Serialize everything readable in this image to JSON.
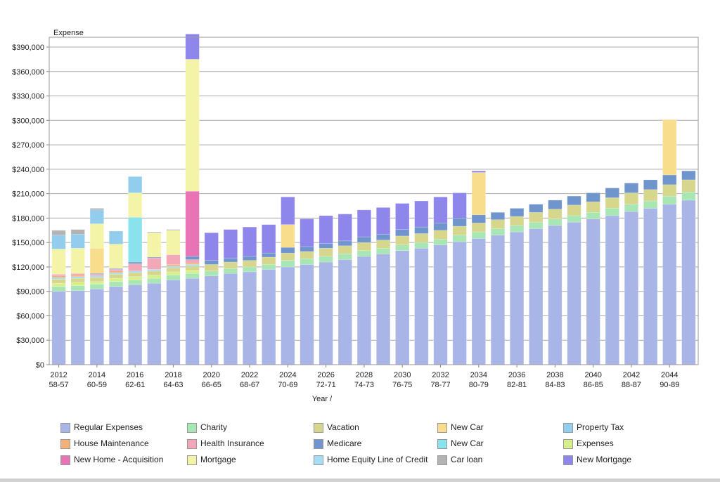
{
  "chart_data": {
    "type": "bar",
    "stacked": true,
    "title": "",
    "ylabel": "Expense",
    "xlabel": "Year /",
    "ylim": [
      0,
      400000
    ],
    "yticks": [
      0,
      30000,
      60000,
      90000,
      120000,
      150000,
      180000,
      210000,
      240000,
      270000,
      300000,
      330000,
      360000,
      390000
    ],
    "ytick_labels": [
      "$0",
      "$30,000",
      "$60,000",
      "$90,000",
      "$120,000",
      "$150,000",
      "$180,000",
      "$210,000",
      "$240,000",
      "$270,000",
      "$300,000",
      "$330,000",
      "$360,000",
      "$390,000"
    ],
    "grid": true,
    "legend_position": "bottom",
    "categories": [
      "2012",
      "2013",
      "2014",
      "2015",
      "2016",
      "2017",
      "2018",
      "2019",
      "2020",
      "2021",
      "2022",
      "2023",
      "2024",
      "2025",
      "2026",
      "2027",
      "2028",
      "2029",
      "2030",
      "2031",
      "2032",
      "2033",
      "2034",
      "2035",
      "2036",
      "2037",
      "2038",
      "2039",
      "2040",
      "2041",
      "2042",
      "2043",
      "2044",
      "2045"
    ],
    "x_tick_labels": [
      {
        "year": "2012",
        "ages": "58-57"
      },
      {
        "year": "2014",
        "ages": "60-59"
      },
      {
        "year": "2016",
        "ages": "62-61"
      },
      {
        "year": "2018",
        "ages": "64-63"
      },
      {
        "year": "2020",
        "ages": "66-65"
      },
      {
        "year": "2022",
        "ages": "68-67"
      },
      {
        "year": "2024",
        "ages": "70-69"
      },
      {
        "year": "2026",
        "ages": "72-71"
      },
      {
        "year": "2028",
        "ages": "74-73"
      },
      {
        "year": "2030",
        "ages": "76-75"
      },
      {
        "year": "2032",
        "ages": "78-77"
      },
      {
        "year": "2034",
        "ages": "80-79"
      },
      {
        "year": "2036",
        "ages": "82-81"
      },
      {
        "year": "2038",
        "ages": "84-83"
      },
      {
        "year": "2040",
        "ages": "86-85"
      },
      {
        "year": "2042",
        "ages": "88-87"
      },
      {
        "year": "2044",
        "ages": "90-89"
      }
    ],
    "series": [
      {
        "name": "Regular Expenses",
        "color": "#a9b5e6",
        "values": [
          90000,
          91000,
          93000,
          96000,
          98000,
          100000,
          104000,
          106000,
          109000,
          112000,
          114000,
          117000,
          120000,
          123000,
          126000,
          129000,
          133000,
          136000,
          140000,
          143000,
          147000,
          151000,
          155000,
          159000,
          163000,
          167000,
          171000,
          175000,
          179000,
          183000,
          188000,
          192000,
          197000,
          202000
        ]
      },
      {
        "name": "Charity",
        "color": "#a8e6b4",
        "values": [
          6000,
          6000,
          6000,
          6000,
          6000,
          6000,
          6000,
          6000,
          6000,
          6000,
          6000,
          6000,
          8000,
          7000,
          7000,
          7000,
          7000,
          7000,
          7000,
          7000,
          7000,
          8000,
          8000,
          8000,
          8000,
          8000,
          8000,
          8000,
          8000,
          9000,
          9000,
          9000,
          10000,
          10000
        ]
      },
      {
        "name": "Expenses",
        "color": "#d8f08c",
        "values": [
          4000,
          4000,
          3000,
          4000,
          4000,
          4000,
          4000,
          4000,
          0,
          0,
          0,
          0,
          0,
          0,
          0,
          0,
          0,
          0,
          0,
          0,
          0,
          0,
          0,
          0,
          0,
          0,
          0,
          0,
          0,
          0,
          0,
          0,
          0,
          0
        ]
      },
      {
        "name": "Vacation",
        "color": "#d6d68c",
        "values": [
          5000,
          5000,
          5000,
          5000,
          5000,
          5000,
          5000,
          5000,
          8000,
          8000,
          8000,
          9000,
          9000,
          9000,
          10000,
          10000,
          10000,
          10000,
          11000,
          11000,
          11000,
          11000,
          11000,
          11000,
          11000,
          12000,
          12000,
          13000,
          13000,
          13000,
          14000,
          14000,
          14000,
          15000
        ]
      },
      {
        "name": "Home Equity Line of Credit",
        "color": "#a8dcf2",
        "values": [
          2000,
          2000,
          2000,
          2000,
          2000,
          2000,
          2000,
          2000,
          0,
          0,
          0,
          0,
          0,
          0,
          0,
          0,
          0,
          0,
          0,
          0,
          0,
          0,
          0,
          0,
          0,
          0,
          0,
          0,
          0,
          0,
          0,
          0,
          0,
          0
        ]
      },
      {
        "name": "House Maintenance",
        "color": "#f3b07a",
        "values": [
          2000,
          2000,
          0,
          2000,
          0,
          0,
          2000,
          2000,
          0,
          0,
          0,
          0,
          0,
          0,
          0,
          0,
          0,
          0,
          0,
          0,
          0,
          0,
          0,
          0,
          0,
          0,
          0,
          0,
          0,
          0,
          0,
          0,
          0,
          0
        ]
      },
      {
        "name": "Health Insurance",
        "color": "#f2a8b8",
        "values": [
          2000,
          2000,
          2000,
          2000,
          9000,
          14000,
          12000,
          4000,
          0,
          0,
          0,
          0,
          0,
          0,
          0,
          0,
          0,
          0,
          0,
          0,
          0,
          0,
          0,
          0,
          0,
          0,
          0,
          0,
          0,
          0,
          0,
          0,
          0,
          0
        ]
      },
      {
        "name": "Medicare",
        "color": "#6f95cc",
        "values": [
          0,
          0,
          1000,
          1000,
          2000,
          1000,
          0,
          4000,
          5000,
          5000,
          5000,
          5000,
          7000,
          6000,
          6000,
          6000,
          7000,
          7000,
          8000,
          8000,
          9000,
          10000,
          10000,
          9000,
          10000,
          10000,
          11000,
          11000,
          11000,
          12000,
          12000,
          12000,
          12000,
          11000
        ]
      },
      {
        "name": "New Car",
        "color": "#f7dd8c",
        "values": [
          0,
          0,
          31000,
          0,
          0,
          0,
          0,
          0,
          0,
          0,
          0,
          0,
          28000,
          0,
          0,
          0,
          0,
          0,
          0,
          0,
          0,
          0,
          52000,
          0,
          0,
          0,
          0,
          0,
          0,
          0,
          0,
          0,
          68000,
          0
        ]
      },
      {
        "name": "New Car (2)",
        "color": "#8ae3ec",
        "values": [
          0,
          0,
          0,
          0,
          55000,
          0,
          0,
          0,
          0,
          0,
          0,
          0,
          0,
          0,
          0,
          0,
          0,
          0,
          0,
          0,
          0,
          0,
          0,
          0,
          0,
          0,
          0,
          0,
          0,
          0,
          0,
          0,
          0,
          0
        ]
      },
      {
        "name": "New Home - Acquisition",
        "color": "#e874b6",
        "values": [
          0,
          0,
          0,
          0,
          0,
          0,
          0,
          80000,
          0,
          0,
          0,
          0,
          0,
          0,
          0,
          0,
          0,
          0,
          0,
          0,
          0,
          0,
          0,
          0,
          0,
          0,
          0,
          0,
          0,
          0,
          0,
          0,
          0,
          0
        ]
      },
      {
        "name": "Mortgage",
        "color": "#f4f4a8",
        "values": [
          31000,
          31000,
          30000,
          30000,
          30000,
          30000,
          30000,
          162000,
          0,
          0,
          0,
          0,
          0,
          0,
          0,
          0,
          0,
          0,
          0,
          0,
          0,
          0,
          0,
          0,
          0,
          0,
          0,
          0,
          0,
          0,
          0,
          0,
          0,
          0
        ]
      },
      {
        "name": "Property Tax",
        "color": "#93cdee",
        "values": [
          17000,
          17000,
          17000,
          16000,
          20000,
          0,
          0,
          0,
          0,
          0,
          0,
          0,
          0,
          0,
          0,
          0,
          0,
          0,
          0,
          0,
          0,
          0,
          0,
          0,
          0,
          0,
          0,
          0,
          0,
          0,
          0,
          0,
          0,
          0
        ]
      },
      {
        "name": "Car loan",
        "color": "#b3b3b3",
        "values": [
          6000,
          6000,
          2000,
          0,
          0,
          1000,
          1000,
          0,
          0,
          0,
          0,
          0,
          0,
          0,
          0,
          0,
          0,
          0,
          0,
          0,
          0,
          0,
          0,
          0,
          0,
          0,
          0,
          0,
          0,
          0,
          0,
          0,
          0,
          0
        ]
      },
      {
        "name": "New Mortgage",
        "color": "#8f86ec",
        "values": [
          0,
          0,
          0,
          0,
          0,
          0,
          0,
          31000,
          34000,
          35000,
          36000,
          35000,
          34000,
          34000,
          34000,
          33000,
          33000,
          33000,
          32000,
          32000,
          32000,
          31000,
          2000,
          0,
          0,
          0,
          0,
          0,
          0,
          0,
          0,
          0,
          0,
          0
        ]
      }
    ]
  },
  "legend": {
    "items": [
      {
        "label": "Regular Expenses",
        "color": "#a9b5e6"
      },
      {
        "label": "Charity",
        "color": "#a8e6b4"
      },
      {
        "label": "Vacation",
        "color": "#d6d68c"
      },
      {
        "label": "New Car",
        "color": "#f7dd8c"
      },
      {
        "label": "Property Tax",
        "color": "#93cdee"
      },
      {
        "label": "House Maintenance",
        "color": "#f3b07a"
      },
      {
        "label": "Health Insurance",
        "color": "#f2a8b8"
      },
      {
        "label": "Medicare",
        "color": "#6f95cc"
      },
      {
        "label": "New Car",
        "color": "#8ae3ec"
      },
      {
        "label": "Expenses",
        "color": "#d8f08c"
      },
      {
        "label": "New Home - Acquisition",
        "color": "#e874b6"
      },
      {
        "label": "Mortgage",
        "color": "#f4f4a8"
      },
      {
        "label": "Home Equity Line of Credit",
        "color": "#a8dcf2"
      },
      {
        "label": "Car loan",
        "color": "#b3b3b3"
      },
      {
        "label": "New Mortgage",
        "color": "#8f86ec"
      }
    ]
  }
}
